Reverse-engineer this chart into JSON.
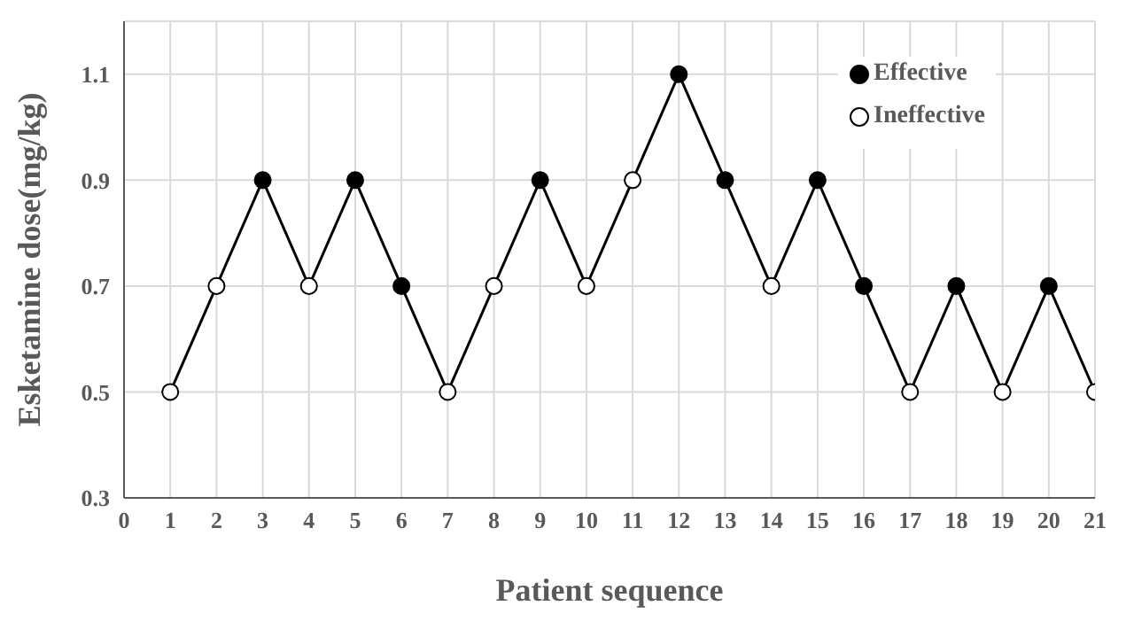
{
  "chart_data": {
    "type": "line",
    "xlabel": "Patient sequence",
    "ylabel": "Esketamine dose(mg/kg)",
    "x": [
      1,
      2,
      3,
      4,
      5,
      6,
      7,
      8,
      9,
      10,
      11,
      12,
      13,
      14,
      15,
      16,
      17,
      18,
      19,
      20,
      21
    ],
    "series": [
      {
        "color": "#000000",
        "values": [
          0.5,
          0.7,
          0.9,
          0.7,
          0.9,
          0.7,
          0.5,
          0.7,
          0.9,
          0.7,
          0.9,
          1.1,
          0.9,
          0.7,
          0.9,
          0.7,
          0.5,
          0.7,
          0.5,
          0.7,
          0.5
        ]
      },
      {
        "type": "scatter",
        "marker": "circle",
        "name": "Effective",
        "color": "#000000",
        "values": [
          null,
          null,
          0.9,
          null,
          0.9,
          0.7,
          null,
          null,
          0.9,
          null,
          null,
          1.1,
          0.9,
          null,
          0.9,
          0.7,
          null,
          0.7,
          null,
          0.7,
          null
        ]
      },
      {
        "type": "scatter",
        "marker": "circle",
        "name": "Ineffective",
        "color": "#ffffff",
        "values": [
          0.5,
          0.7,
          null,
          0.7,
          null,
          null,
          0.5,
          0.7,
          null,
          0.7,
          0.9,
          null,
          null,
          0.7,
          null,
          null,
          0.5,
          null,
          0.5,
          null,
          0.5
        ]
      }
    ],
    "xlim": [
      0,
      21
    ],
    "xticks": [
      0,
      1,
      2,
      3,
      4,
      5,
      6,
      7,
      8,
      9,
      10,
      11,
      12,
      13,
      14,
      15,
      16,
      17,
      18,
      19,
      20,
      21
    ],
    "ylim": [
      0.3,
      1.2
    ],
    "yticks": [
      0.3,
      0.5,
      0.7,
      0.9,
      1.1
    ],
    "grid": true,
    "legend": "top right"
  }
}
